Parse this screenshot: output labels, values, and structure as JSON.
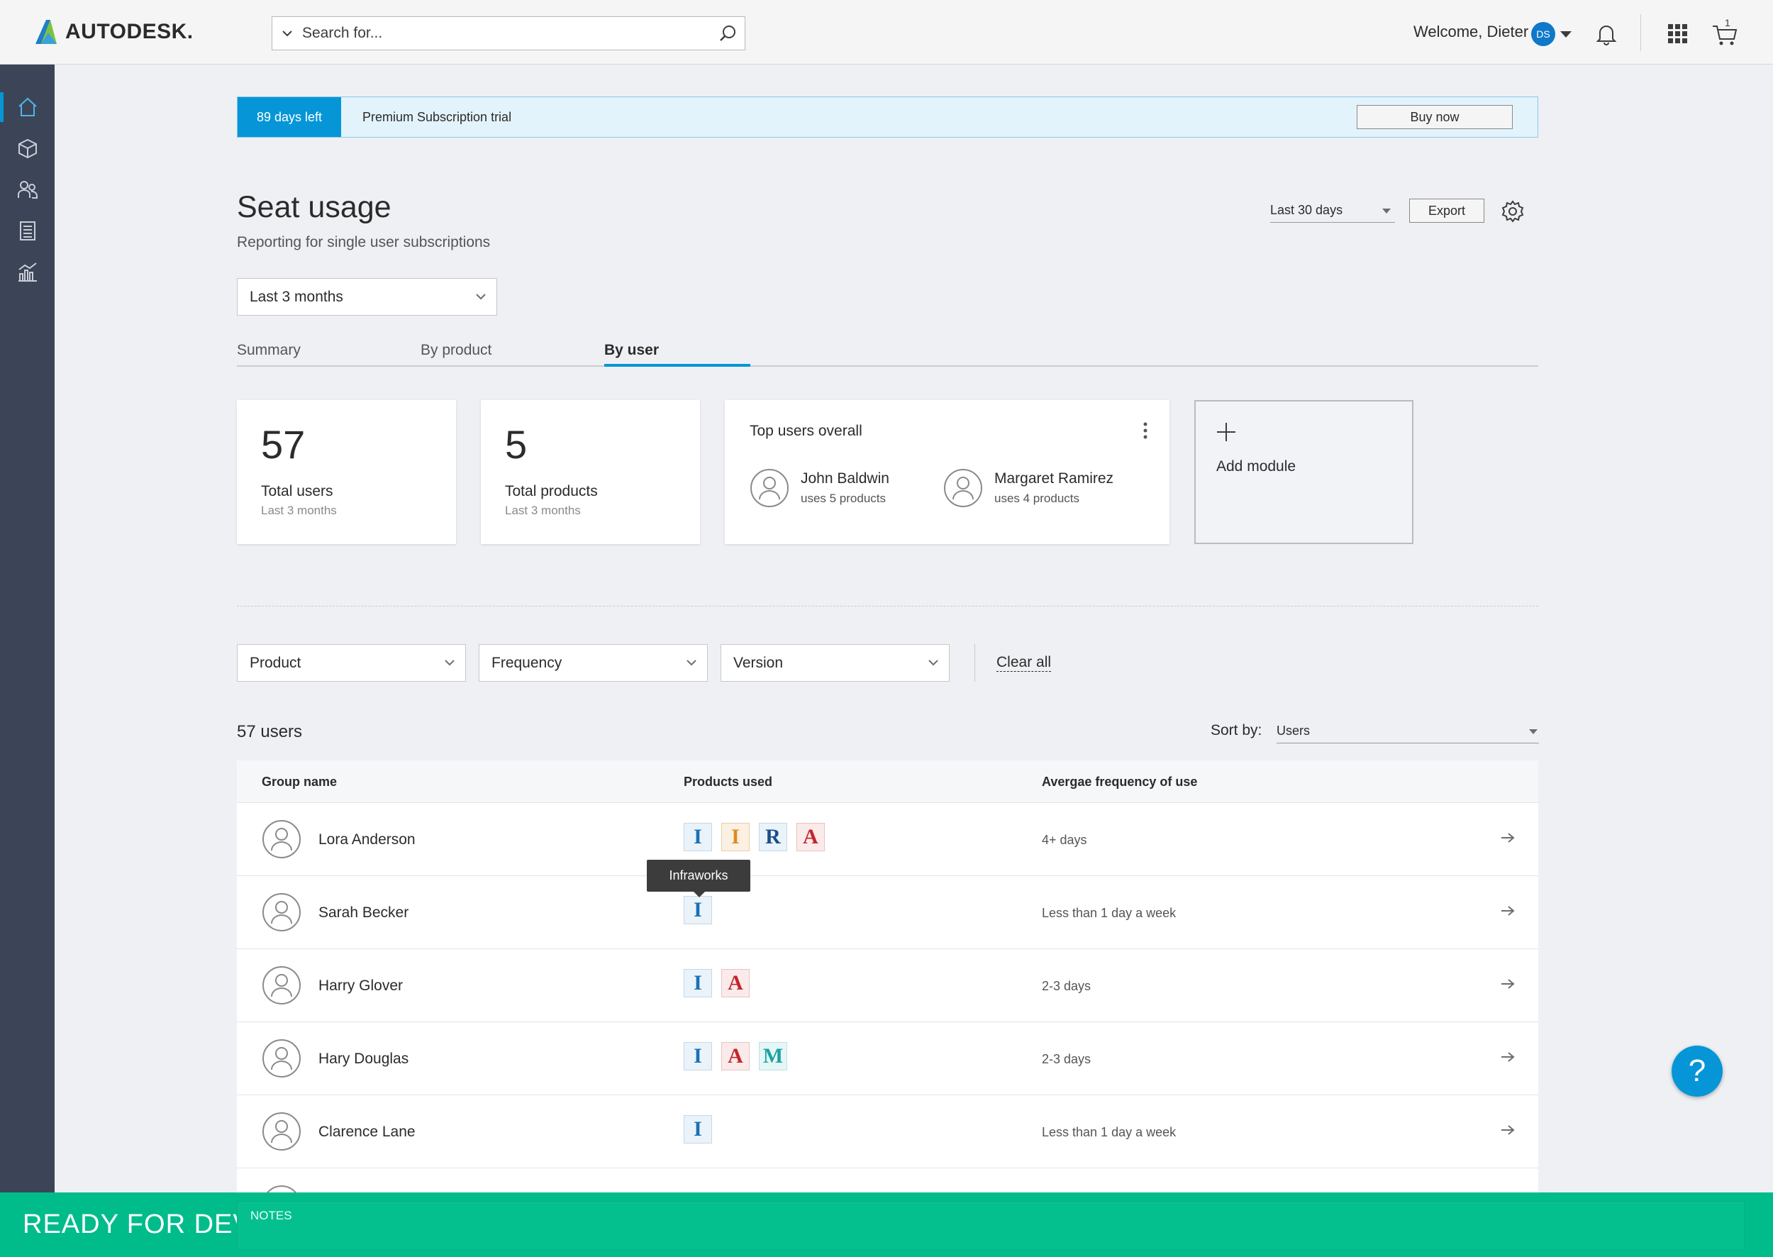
{
  "brand": {
    "name": "AUTODESK."
  },
  "search": {
    "placeholder": "Search for..."
  },
  "header": {
    "welcome": "Welcome, Dieter",
    "initials": "DS",
    "cart_count": "1"
  },
  "sidebar": {
    "items": [
      {
        "icon": "home-icon",
        "active": true
      },
      {
        "icon": "box-icon",
        "active": false
      },
      {
        "icon": "users-icon",
        "active": false
      },
      {
        "icon": "document-icon",
        "active": false
      },
      {
        "icon": "chart-icon",
        "active": false
      }
    ]
  },
  "trial": {
    "days_left": "89 days left",
    "label": "Premium Subscription trial",
    "buy_label": "Buy now"
  },
  "page": {
    "title": "Seat usage",
    "subtitle": "Reporting for single user subscriptions"
  },
  "top_controls": {
    "range": "Last 30 days",
    "export_label": "Export"
  },
  "period": {
    "selected": "Last 3 months"
  },
  "tabs": [
    {
      "label": "Summary",
      "active": false
    },
    {
      "label": "By product",
      "active": false
    },
    {
      "label": "By user",
      "active": true
    }
  ],
  "cards": {
    "total_users": {
      "value": "57",
      "label": "Total users",
      "sub": "Last 3 months"
    },
    "total_products": {
      "value": "5",
      "label": "Total products",
      "sub": "Last 3 months"
    },
    "top_users": {
      "title": "Top users overall",
      "users": [
        {
          "name": "John Baldwin",
          "usage": "uses 5 products"
        },
        {
          "name": "Margaret Ramirez",
          "usage": "uses 4 products"
        }
      ]
    },
    "add_module": {
      "label": "Add module"
    }
  },
  "filters": {
    "product": "Product",
    "frequency": "Frequency",
    "version": "Version",
    "clear_label": "Clear all"
  },
  "list": {
    "count": "57 users",
    "sort_label": "Sort by:",
    "sort_value": "Users"
  },
  "table": {
    "headers": {
      "group": "Group name",
      "products": "Products used",
      "frequency": "Avergae frequency of use"
    },
    "rows": [
      {
        "name": "Lora Anderson",
        "products": [
          "I",
          "I",
          "R",
          "A"
        ],
        "frequency": "4+ days"
      },
      {
        "name": "Sarah Becker",
        "products": [
          "I"
        ],
        "frequency": "Less than 1 day a week"
      },
      {
        "name": "Harry Glover",
        "products": [
          "I",
          "A"
        ],
        "frequency": "2-3 days"
      },
      {
        "name": "Hary Douglas",
        "products": [
          "I",
          "A",
          "M"
        ],
        "frequency": "2-3 days"
      },
      {
        "name": "Clarence Lane",
        "products": [
          "I"
        ],
        "frequency": "Less than 1 day a week"
      }
    ]
  },
  "tooltip": {
    "text": "Infraworks"
  },
  "help": {
    "label": "?"
  },
  "footer": {
    "status": "READY FOR DEV",
    "notes_label": "NOTES"
  },
  "colors": {
    "accent": "#0696d7",
    "sidebar": "#3c4457",
    "footer": "#00bc8b",
    "infraworks": "#1a6fb5",
    "inventor": "#e08a1e",
    "revit": "#1b4f8a",
    "autocad": "#c1272d",
    "maya": "#1aa3a3"
  }
}
